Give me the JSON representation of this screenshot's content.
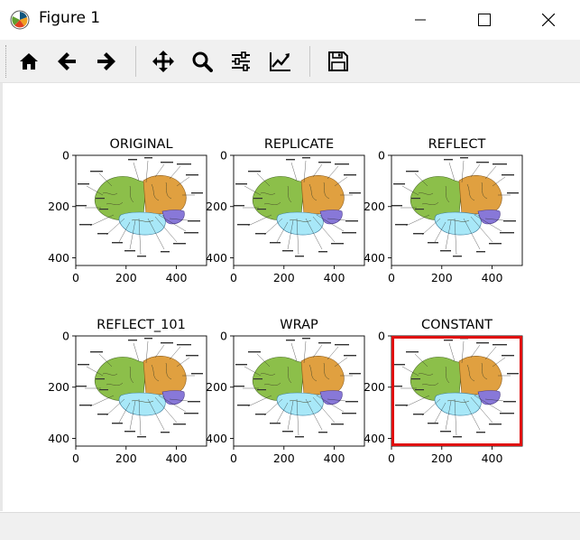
{
  "window": {
    "title": "Figure 1"
  },
  "window_controls": [
    "minimize-icon",
    "maximize-icon",
    "close-icon"
  ],
  "toolbar": {
    "buttons": [
      {
        "name": "home-button",
        "icon": "home-icon"
      },
      {
        "name": "back-button",
        "icon": "arrow-left-icon"
      },
      {
        "name": "forward-button",
        "icon": "arrow-right-icon"
      },
      {
        "name": "pan-button",
        "icon": "move-icon"
      },
      {
        "name": "zoom-button",
        "icon": "magnifier-icon"
      },
      {
        "name": "subplots-button",
        "icon": "sliders-icon"
      },
      {
        "name": "edit-axes-button",
        "icon": "line-chart-icon"
      },
      {
        "name": "save-button",
        "icon": "floppy-disk-icon"
      }
    ]
  },
  "colors": {
    "frontal_lobe": "#8cbf4a",
    "parietal_lobe": "#e0a040",
    "temporal_lobe": "#a8e8f8",
    "occipital_lobe": "#8878d8",
    "highlight": "#e01010"
  },
  "subplots": [
    {
      "title": "ORIGINAL",
      "yticks": [
        "0",
        "200",
        "400"
      ],
      "xticks": [
        "0",
        "200",
        "400"
      ]
    },
    {
      "title": "REPLICATE",
      "yticks": [
        "0",
        "200",
        "400"
      ],
      "xticks": [
        "0",
        "200",
        "400"
      ]
    },
    {
      "title": "REFLECT",
      "yticks": [
        "0",
        "200",
        "400"
      ],
      "xticks": [
        "0",
        "200",
        "400"
      ]
    },
    {
      "title": "REFLECT_101",
      "yticks": [
        "0",
        "200",
        "400"
      ],
      "xticks": [
        "0",
        "200",
        "400"
      ]
    },
    {
      "title": "WRAP",
      "yticks": [
        "0",
        "200",
        "400"
      ],
      "xticks": [
        "0",
        "200",
        "400"
      ]
    },
    {
      "title": "CONSTANT",
      "yticks": [
        "0",
        "200",
        "400"
      ],
      "xticks": [
        "0",
        "200",
        "400"
      ],
      "border": "constant-red"
    }
  ]
}
